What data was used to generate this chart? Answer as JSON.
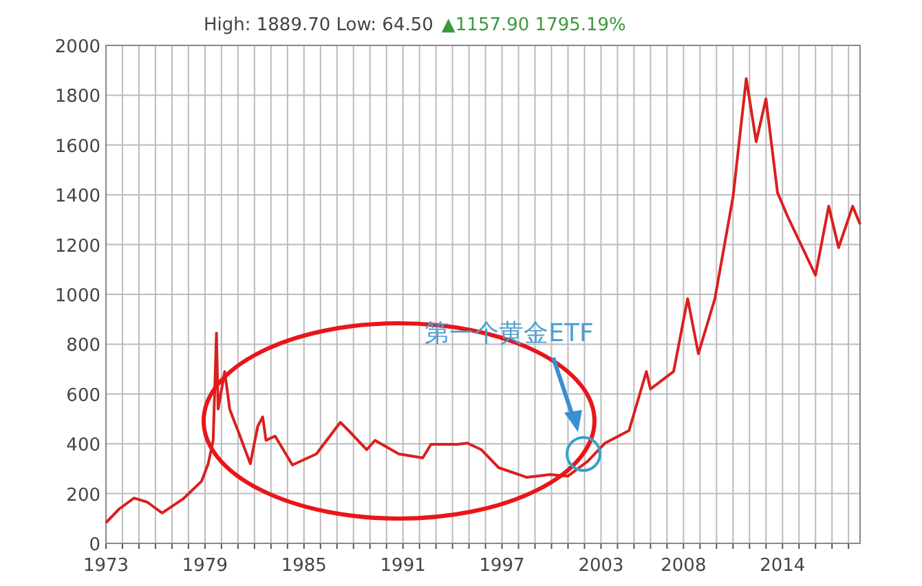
{
  "chart_data": {
    "type": "line",
    "title": "High: 1889.70 Low: 64.50",
    "subtitle": "▲1157.90 1795.19%",
    "x": [
      1973,
      1973.8,
      1974.7,
      1975.5,
      1976.4,
      1977.7,
      1978.8,
      1979.2,
      1979.5,
      1979.7,
      1979.8,
      1980.2,
      1980.5,
      1980.8,
      1981.0,
      1981.75,
      1982.2,
      1982.5,
      1982.7,
      1983.25,
      1984.3,
      1985.75,
      1987.2,
      1987.7,
      1988.8,
      1989.3,
      1990.75,
      1992.2,
      1992.7,
      1994.3,
      1994.9,
      1995.75,
      1996.8,
      1998.5,
      1999.9,
      2001,
      2002.2,
      2003.25,
      2004.7,
      2005.75,
      2006,
      2007.4,
      2008.25,
      2008.9,
      2009.9,
      2011,
      2011.8,
      2012.4,
      2013,
      2013.7,
      2014.3,
      2016,
      2016.8,
      2017.4,
      2018.25,
      2018.7
    ],
    "series": [
      {
        "color": "#d9201f",
        "values": [
          83,
          138,
          182,
          166,
          122,
          180,
          250,
          320,
          414,
          845,
          540,
          690,
          540,
          486,
          453,
          320,
          470,
          508,
          414,
          431,
          315,
          359,
          486,
          453,
          376,
          414,
          359,
          343,
          398,
          398,
          403,
          376,
          304,
          265,
          276,
          270,
          330,
          403,
          453,
          690,
          620,
          690,
          983,
          762,
          983,
          1392,
          1867,
          1613,
          1785,
          1409,
          1315,
          1077,
          1354,
          1188,
          1354,
          1282
        ]
      }
    ],
    "xlim": [
      1973,
      2018.7
    ],
    "xticks": [
      {
        "value": 1973,
        "label": "1973"
      },
      {
        "value": 1974,
        "label": null
      },
      {
        "value": 1975,
        "label": null
      },
      {
        "value": 1976,
        "label": null
      },
      {
        "value": 1977,
        "label": null
      },
      {
        "value": 1978,
        "label": null
      },
      {
        "value": 1979,
        "label": "1979"
      },
      {
        "value": 1980,
        "label": null
      },
      {
        "value": 1981,
        "label": null
      },
      {
        "value": 1982,
        "label": null
      },
      {
        "value": 1983,
        "label": null
      },
      {
        "value": 1984,
        "label": null
      },
      {
        "value": 1985,
        "label": "1985"
      },
      {
        "value": 1986,
        "label": null
      },
      {
        "value": 1987,
        "label": null
      },
      {
        "value": 1988,
        "label": null
      },
      {
        "value": 1989,
        "label": null
      },
      {
        "value": 1990,
        "label": null
      },
      {
        "value": 1991,
        "label": "1991"
      },
      {
        "value": 1992,
        "label": null
      },
      {
        "value": 1993,
        "label": null
      },
      {
        "value": 1994,
        "label": null
      },
      {
        "value": 1995,
        "label": null
      },
      {
        "value": 1996,
        "label": null
      },
      {
        "value": 1997,
        "label": "1997"
      },
      {
        "value": 1998,
        "label": null
      },
      {
        "value": 1999,
        "label": null
      },
      {
        "value": 2000,
        "label": null
      },
      {
        "value": 2001,
        "label": null
      },
      {
        "value": 2002,
        "label": null
      },
      {
        "value": 2003,
        "label": "2003"
      },
      {
        "value": 2004,
        "label": null
      },
      {
        "value": 2005,
        "label": null
      },
      {
        "value": 2006,
        "label": null
      },
      {
        "value": 2007,
        "label": null
      },
      {
        "value": 2008,
        "label": "2008"
      },
      {
        "value": 2009,
        "label": null
      },
      {
        "value": 2010,
        "label": null
      },
      {
        "value": 2011,
        "label": null
      },
      {
        "value": 2012,
        "label": null
      },
      {
        "value": 2013,
        "label": null
      },
      {
        "value": 2014,
        "label": "2014"
      },
      {
        "value": 2015,
        "label": null
      },
      {
        "value": 2016,
        "label": null
      },
      {
        "value": 2017,
        "label": null
      },
      {
        "value": 2018,
        "label": null
      }
    ],
    "ylim": [
      0,
      2000
    ],
    "yticks": [
      0,
      200,
      400,
      600,
      800,
      1000,
      1200,
      1400,
      1600,
      1800,
      2000
    ],
    "grid": true,
    "marker": "none",
    "line_style": "solid",
    "annotations": [
      "第一个黄金ETF"
    ]
  }
}
